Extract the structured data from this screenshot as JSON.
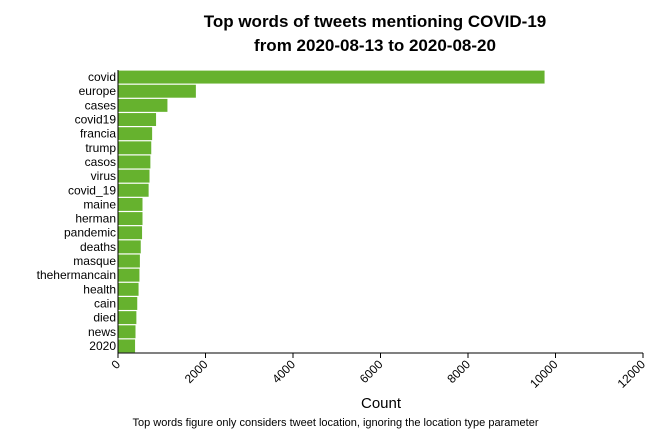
{
  "chart_data": {
    "type": "bar",
    "orientation": "horizontal",
    "title_line1": "Top words of tweets mentioning COVID-19",
    "title_line2": "from 2020-08-13 to 2020-08-20",
    "xlabel": "Count",
    "ylabel": "",
    "xlim": [
      0,
      12000
    ],
    "x_ticks": [
      "0",
      "2000",
      "4000",
      "6000",
      "8000",
      "10000",
      "12000"
    ],
    "bar_color": "#66b22e",
    "grid": false,
    "categories": [
      "covid",
      "europe",
      "cases",
      "covid19",
      "francia",
      "trump",
      "casos",
      "virus",
      "covid_19",
      "maine",
      "herman",
      "pandemic",
      "deaths",
      "masque",
      "thehermancain",
      "health",
      "cain",
      "died",
      "news",
      "2020"
    ],
    "values": [
      9750,
      1780,
      1130,
      870,
      780,
      760,
      740,
      720,
      700,
      560,
      560,
      550,
      520,
      500,
      490,
      470,
      440,
      420,
      400,
      390
    ]
  },
  "footnote": "Top words figure only considers tweet location, ignoring the location type parameter"
}
